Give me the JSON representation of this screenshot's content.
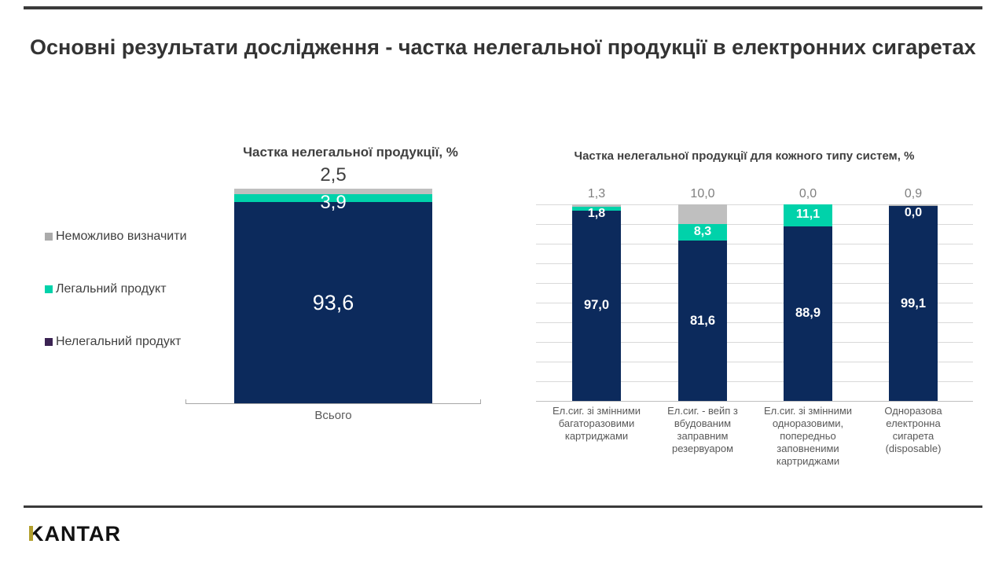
{
  "slide": {
    "title": "Основні результати дослідження - частка нелегальної продукції в електронних сигаретах",
    "brand_logo": "KANTAR"
  },
  "colors": {
    "illegal_navy": "#0C2A5C",
    "legal_teal": "#00D2AA",
    "undetermined_gray": "#BFBFBF",
    "legend_illegal_marker": "#3B2353",
    "legend_undetermined_marker": "#ABABAB",
    "gold_accent": "#B3A02E",
    "rule_dark": "#3A3A3A",
    "grid_gray": "#D9D9D9",
    "axis_gray": "#A6A6A6"
  },
  "legend": {
    "items": [
      {
        "key": "undetermined",
        "label": "Неможливо визначити",
        "color": "#ABABAB"
      },
      {
        "key": "legal",
        "label": "Легальний продукт",
        "color": "#00D2AA"
      },
      {
        "key": "illegal",
        "label": "Нелегальний продукт",
        "color": "#3B2353"
      }
    ]
  },
  "chart_data": [
    {
      "type": "bar",
      "subtype": "stacked-column",
      "title": "Частка нелегальної продукції, %",
      "categories": [
        "Всього"
      ],
      "series": [
        {
          "name": "Нелегальний продукт",
          "color": "#0C2A5C",
          "values": [
            93.6
          ]
        },
        {
          "name": "Легальний продукт",
          "color": "#00D2AA",
          "values": [
            3.9
          ]
        },
        {
          "name": "Неможливо визначити",
          "color": "#BFBFBF",
          "values": [
            2.5
          ]
        }
      ],
      "ylim": [
        0,
        100
      ],
      "grid": false,
      "legend_position": "left",
      "value_label_format": "comma-decimal-1"
    },
    {
      "type": "bar",
      "subtype": "stacked-column",
      "title": "Частка нелегальної продукції для кожного типу систем, %",
      "categories": [
        "Ел.сиг. зі змінними\nбагаторазовими\nкартриджами",
        "Ел.сиг. - вейп з\nвбудованим\nзаправним\nрезервуаром",
        "Ел.сиг. зі змінними\nодноразовими,\nпопередньо\nзаповненими\nкартриджами",
        "Одноразова\nелектронна\nсигарета\n(disposable)"
      ],
      "series": [
        {
          "name": "Нелегальний продукт",
          "color": "#0C2A5C",
          "values": [
            97.0,
            81.6,
            88.9,
            99.1
          ]
        },
        {
          "name": "Легальний продукт",
          "color": "#00D2AA",
          "values": [
            1.8,
            8.3,
            11.1,
            0.0
          ]
        },
        {
          "name": "Неможливо визначити",
          "color": "#BFBFBF",
          "values": [
            1.3,
            10.0,
            0.0,
            0.9
          ]
        }
      ],
      "ylim": [
        0,
        100
      ],
      "grid": true,
      "value_label_format": "comma-decimal-1"
    }
  ]
}
